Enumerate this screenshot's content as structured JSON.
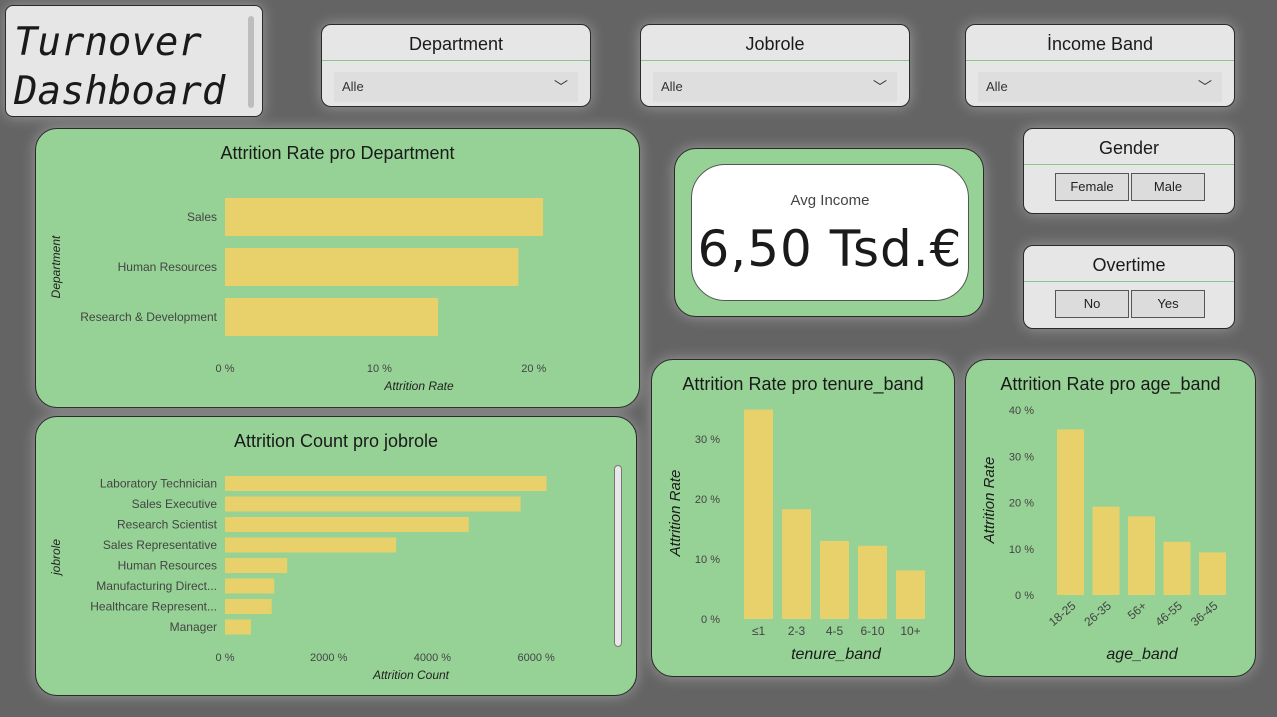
{
  "title": {
    "line1": "Turnover",
    "line2": "Dashboard"
  },
  "slicers": {
    "department": {
      "label": "Department",
      "value": "Alle"
    },
    "jobrole": {
      "label": "Jobrole",
      "value": "Alle"
    },
    "income_band": {
      "label": "İncome Band",
      "value": "Alle"
    },
    "gender": {
      "label": "Gender",
      "options": [
        "Female",
        "Male"
      ]
    },
    "overtime": {
      "label": "Overtime",
      "options": [
        "No",
        "Yes"
      ]
    }
  },
  "kpi": {
    "label": "Avg Income",
    "value": "6,50 Tsd.€"
  },
  "colors": {
    "background": "#646464",
    "panel": "#96d295",
    "bar": "#e8d16a",
    "slicer": "#e6e6e6"
  },
  "chart_data": [
    {
      "id": "dept",
      "type": "bar",
      "orientation": "horizontal",
      "title": "Attrition Rate pro Department",
      "xlabel": "Attrition Rate",
      "ylabel": "Department",
      "categories": [
        "Sales",
        "Human Resources",
        "Research & Development"
      ],
      "values": [
        20.6,
        19.0,
        13.8
      ],
      "xlim": [
        0,
        25
      ],
      "xticks": [
        0,
        10,
        20
      ],
      "xtick_labels": [
        "0 %",
        "10 %",
        "20 %"
      ]
    },
    {
      "id": "jobrole",
      "type": "bar",
      "orientation": "horizontal",
      "title": "Attrition Count pro jobrole",
      "xlabel": "Attrition Count",
      "ylabel": "jobrole",
      "categories": [
        "Laboratory Technician",
        "Sales Executive",
        "Research Scientist",
        "Sales Representative",
        "Human Resources",
        "Manufacturing Direct...",
        "Healthcare Represent...",
        "Manager"
      ],
      "values": [
        6200,
        5700,
        4700,
        3300,
        1200,
        950,
        900,
        500
      ],
      "xlim": [
        0,
        7000
      ],
      "xticks": [
        0,
        2000,
        4000,
        6000
      ],
      "xtick_labels": [
        "0 %",
        "2000 %",
        "4000 %",
        "6000 %"
      ]
    },
    {
      "id": "tenure",
      "type": "bar",
      "title": "Attrition Rate pro tenure_band",
      "xlabel": "tenure_band",
      "ylabel": "Attrition Rate",
      "categories": [
        "≤1",
        "2-3",
        "4-5",
        "6-10",
        "10+"
      ],
      "values": [
        34.9,
        18.3,
        13.0,
        12.2,
        8.1
      ],
      "ylim": [
        0,
        35
      ],
      "yticks": [
        0,
        10,
        20,
        30
      ],
      "ytick_labels": [
        "0 %",
        "10 %",
        "20 %",
        "30 %"
      ]
    },
    {
      "id": "age",
      "type": "bar",
      "title": "Attrition Rate pro age_band",
      "xlabel": "age_band",
      "ylabel": "Attrition Rate",
      "categories": [
        "18-25",
        "26-35",
        "56+",
        "46-55",
        "36-45"
      ],
      "values": [
        35.8,
        19.1,
        17.0,
        11.5,
        9.2
      ],
      "ylim": [
        0,
        40
      ],
      "yticks": [
        0,
        10,
        20,
        30,
        40
      ],
      "ytick_labels": [
        "0 %",
        "10 %",
        "20 %",
        "30 %",
        "40 %"
      ]
    }
  ]
}
